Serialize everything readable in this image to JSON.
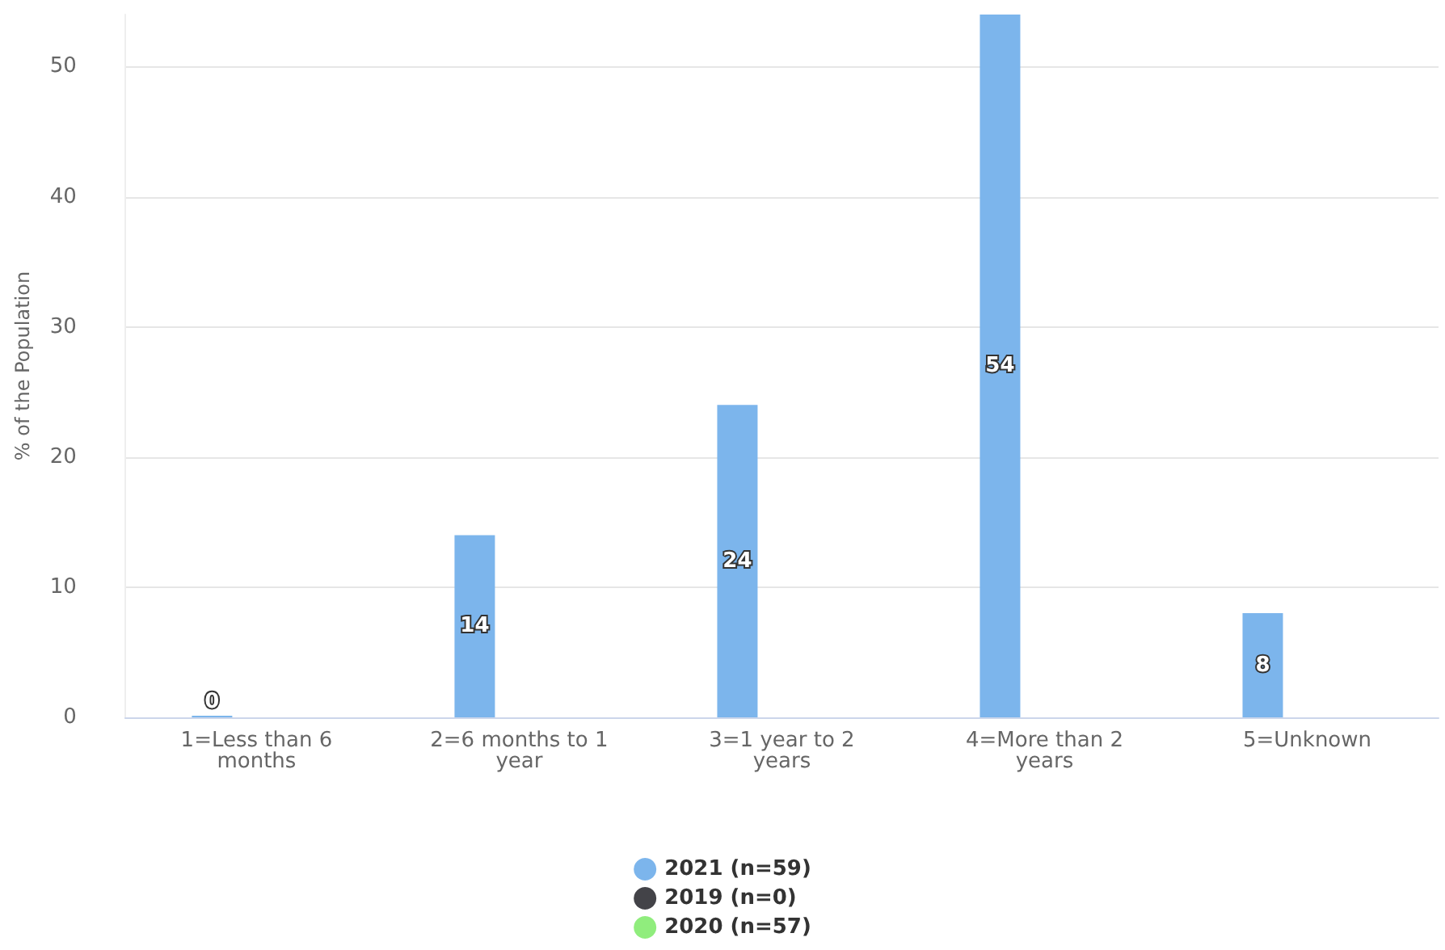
{
  "chart_data": {
    "type": "bar",
    "ylabel": "% of the Population",
    "categories": [
      "1=Less than 6 months",
      "2=6 months to 1 year",
      "3=1 year to 2 years",
      "4=More than 2 years",
      "5=Unknown"
    ],
    "series": [
      {
        "name": "2021 (n=59)",
        "color": "#7cb5ec",
        "values": [
          0,
          14,
          24,
          54,
          8
        ]
      },
      {
        "name": "2019 (n=0)",
        "color": "#434348",
        "values": [
          null,
          null,
          null,
          null,
          null
        ]
      },
      {
        "name": "2020 (n=57)",
        "color": "#90ed7d",
        "values": [
          null,
          null,
          null,
          null,
          null
        ]
      }
    ],
    "ylim": [
      0,
      54
    ],
    "yticks": [
      0,
      10,
      20,
      30,
      40,
      50
    ],
    "grid": "y",
    "legend": "bottom",
    "data_labels": true
  }
}
